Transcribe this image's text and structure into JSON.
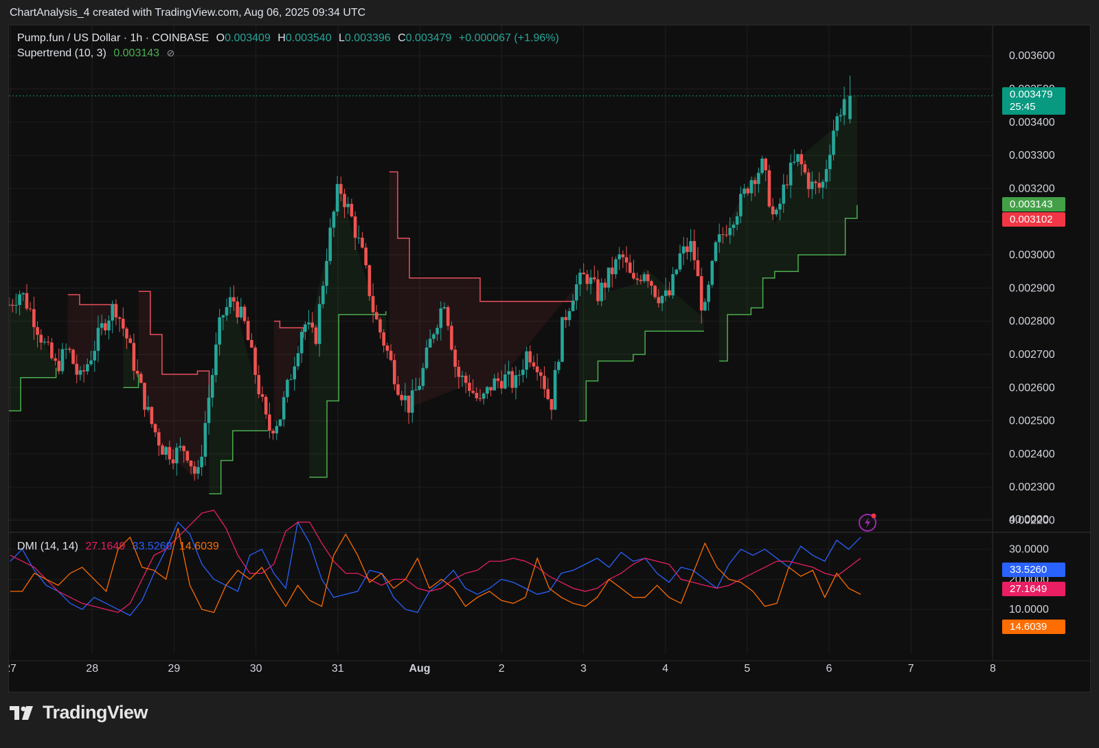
{
  "header": {
    "caption": "ChartAnalysis_4 created with TradingView.com, Aug 06, 2025 09:34 UTC"
  },
  "legend": {
    "symbol": "Pump.fun / US Dollar · 1h · COINBASE",
    "o_label": "O",
    "o_value": "0.003409",
    "h_label": "H",
    "h_value": "0.003540",
    "l_label": "L",
    "l_value": "0.003396",
    "c_label": "C",
    "c_value": "0.003479",
    "change": "+0.000067 (+1.96%)",
    "supertrend_label": "Supertrend (10, 3)",
    "supertrend_value": "0.003143",
    "supertrend_icon": "eye-slash-icon",
    "dmi_label": "DMI (14, 14)",
    "dmi_v1": "27.1649",
    "dmi_v2": "33.5260",
    "dmi_v3": "14.6039"
  },
  "price_tags": {
    "last_price": "0.003479",
    "countdown": "25:45",
    "supertrend_up": "0.003143",
    "supertrend_down": "0.003102"
  },
  "dmi_tags": {
    "plus_di": "33.5260",
    "minus_di": "27.1649",
    "adx": "14.6039"
  },
  "colors": {
    "up": "#26a69a",
    "down": "#ef5350",
    "st_up": "#4caf50",
    "st_down": "#e8515e",
    "plus_di": "#2962ff",
    "minus_di": "#e91e63",
    "adx": "#ff6d00",
    "last_tag": "#089981",
    "st_up_tag": "#43a047",
    "st_down_tag": "#f23645"
  },
  "footer": {
    "brand": "TradingView",
    "logo_icon": "tradingview-logo-icon"
  },
  "chart_data": {
    "type": "candlestick",
    "interval": "1h",
    "price_axis": {
      "labels": [
        "0.003600",
        "0.003500",
        "0.003400",
        "0.003300",
        "0.003200",
        "0.003100",
        "0.003000",
        "0.002900",
        "0.002800",
        "0.002700",
        "0.002600",
        "0.002500",
        "0.002400",
        "0.002300",
        "0.002200"
      ],
      "ylim": [
        0.00217,
        0.00365
      ]
    },
    "dmi_axis": {
      "labels": [
        "40.0000",
        "30.0000",
        "20.0000",
        "10.0000"
      ]
    },
    "x_axis": {
      "labels": [
        "27",
        "28",
        "29",
        "30",
        "31",
        "Aug",
        "2",
        "3",
        "4",
        "5",
        "6",
        "7",
        "8"
      ]
    },
    "price_points": [
      [
        0,
        0.00285
      ],
      [
        1,
        0.00289
      ],
      [
        2,
        0.00282
      ],
      [
        3,
        0.00273
      ],
      [
        4,
        0.00266
      ],
      [
        5,
        0.00272
      ],
      [
        6,
        0.00262
      ],
      [
        7,
        0.0027
      ],
      [
        8,
        0.00279
      ],
      [
        9,
        0.00285
      ],
      [
        10,
        0.00275
      ],
      [
        11,
        0.00262
      ],
      [
        12,
        0.0025
      ],
      [
        13,
        0.00242
      ],
      [
        14,
        0.0024
      ],
      [
        15,
        0.00242
      ],
      [
        16,
        0.00232
      ],
      [
        17,
        0.00258
      ],
      [
        18,
        0.00281
      ],
      [
        19,
        0.00287
      ],
      [
        20,
        0.00279
      ],
      [
        21,
        0.00263
      ],
      [
        22,
        0.00247
      ],
      [
        23,
        0.00251
      ],
      [
        24,
        0.00265
      ],
      [
        25,
        0.0028
      ],
      [
        26,
        0.00274
      ],
      [
        27,
        0.00301
      ],
      [
        28,
        0.00321
      ],
      [
        29,
        0.00312
      ],
      [
        30,
        0.003
      ],
      [
        31,
        0.00282
      ],
      [
        32,
        0.00272
      ],
      [
        33,
        0.00261
      ],
      [
        34,
        0.00254
      ],
      [
        35,
        0.00263
      ],
      [
        36,
        0.00277
      ],
      [
        37,
        0.00287
      ],
      [
        38,
        0.00264
      ],
      [
        39,
        0.00261
      ],
      [
        40,
        0.00255
      ],
      [
        41,
        0.00261
      ],
      [
        42,
        0.00263
      ],
      [
        43,
        0.00261
      ],
      [
        44,
        0.00271
      ],
      [
        45,
        0.00267
      ],
      [
        46,
        0.00254
      ],
      [
        47,
        0.00279
      ],
      [
        48,
        0.0029
      ],
      [
        49,
        0.00294
      ],
      [
        50,
        0.00288
      ],
      [
        51,
        0.00294
      ],
      [
        52,
        0.003
      ],
      [
        53,
        0.00291
      ],
      [
        54,
        0.00296
      ],
      [
        55,
        0.00288
      ],
      [
        56,
        0.00287
      ],
      [
        57,
        0.003
      ],
      [
        58,
        0.00303
      ],
      [
        59,
        0.00281
      ],
      [
        60,
        0.00302
      ],
      [
        61,
        0.00309
      ],
      [
        62,
        0.00315
      ],
      [
        63,
        0.00323
      ],
      [
        64,
        0.00327
      ],
      [
        65,
        0.00309
      ],
      [
        66,
        0.00323
      ],
      [
        67,
        0.00329
      ],
      [
        68,
        0.00321
      ],
      [
        69,
        0.0032
      ],
      [
        70,
        0.00338
      ],
      [
        71,
        0.00348
      ]
    ],
    "supertrend": {
      "up_color": "#4caf50",
      "down_color": "#e8515e",
      "segments": [
        {
          "dir": "up",
          "points": [
            [
              0,
              0.00253
            ],
            [
              1,
              0.00263
            ],
            [
              4,
              0.00266
            ]
          ]
        },
        {
          "dir": "down",
          "points": [
            [
              5,
              0.00288
            ],
            [
              6,
              0.00285
            ],
            [
              9,
              0.00285
            ]
          ]
        },
        {
          "dir": "up",
          "points": [
            [
              9.7,
              0.0026
            ],
            [
              11,
              0.00264
            ]
          ]
        },
        {
          "dir": "down",
          "points": [
            [
              11,
              0.00289
            ],
            [
              12,
              0.00276
            ],
            [
              13,
              0.00264
            ],
            [
              16,
              0.00265
            ],
            [
              17,
              0.00253
            ]
          ]
        },
        {
          "dir": "up",
          "points": [
            [
              17,
              0.00228
            ],
            [
              18,
              0.00238
            ],
            [
              19,
              0.00247
            ],
            [
              22,
              0.00247
            ]
          ]
        },
        {
          "dir": "down",
          "points": [
            [
              22.5,
              0.0028
            ],
            [
              23,
              0.00278
            ],
            [
              25,
              0.00275
            ]
          ]
        },
        {
          "dir": "up",
          "points": [
            [
              25.5,
              0.00233
            ],
            [
              27,
              0.00256
            ],
            [
              28,
              0.00282
            ],
            [
              32,
              0.00283
            ]
          ]
        },
        {
          "dir": "down",
          "points": [
            [
              32.3,
              0.00325
            ],
            [
              33,
              0.00305
            ],
            [
              34,
              0.00293
            ],
            [
              39,
              0.00293
            ],
            [
              40,
              0.00286
            ],
            [
              48,
              0.00285
            ]
          ]
        },
        {
          "dir": "up",
          "points": [
            [
              48.4,
              0.0025
            ],
            [
              49,
              0.00262
            ],
            [
              50,
              0.00268
            ],
            [
              53,
              0.0027
            ],
            [
              54,
              0.00277
            ],
            [
              59,
              0.00277
            ]
          ]
        },
        {
          "dir": "up",
          "points": [
            [
              60.3,
              0.00268
            ],
            [
              61,
              0.00282
            ],
            [
              63,
              0.00284
            ],
            [
              64,
              0.00293
            ],
            [
              65,
              0.00295
            ],
            [
              67,
              0.003
            ],
            [
              70,
              0.003
            ],
            [
              71,
              0.00311
            ],
            [
              72,
              0.00315
            ]
          ]
        }
      ]
    },
    "series": [
      {
        "name": "+DI",
        "color": "#2962ff",
        "values": [
          26,
          30,
          23,
          18,
          16,
          12,
          10,
          14,
          12,
          10,
          8,
          13,
          22,
          30,
          39,
          35,
          25,
          20,
          18,
          16,
          28,
          30,
          22,
          17,
          39,
          32,
          20,
          14,
          15,
          16,
          23,
          22,
          14,
          10,
          9,
          16,
          19,
          23,
          17,
          15,
          17,
          20,
          19,
          17,
          15,
          16,
          22,
          23,
          25,
          27,
          24,
          29,
          26,
          27,
          22,
          19,
          24,
          23,
          20,
          17,
          25,
          30,
          28,
          30,
          27,
          24,
          31,
          28,
          26,
          33,
          30,
          34
        ]
      },
      {
        "name": "-DI",
        "color": "#e91e63",
        "values": [
          28,
          26,
          24,
          20,
          16,
          14,
          12,
          11,
          10,
          9,
          12,
          20,
          28,
          30,
          34,
          38,
          42,
          43,
          37,
          28,
          22,
          22,
          25,
          36,
          39,
          39,
          32,
          26,
          22,
          22,
          20,
          18,
          20,
          20,
          17,
          16,
          17,
          20,
          22,
          23,
          26,
          26,
          27,
          26,
          24,
          21,
          19,
          17,
          16,
          17,
          20,
          22,
          25,
          27,
          26,
          25,
          20,
          19,
          18,
          17,
          18,
          20,
          22,
          24,
          26,
          26,
          25,
          24,
          22,
          21,
          24,
          27
        ]
      },
      {
        "name": "ADX",
        "color": "#ff6d00",
        "values": [
          16,
          16,
          22,
          20,
          18,
          22,
          24,
          20,
          16,
          30,
          34,
          24,
          23,
          20,
          37,
          18,
          10,
          9,
          18,
          23,
          20,
          24,
          17,
          11,
          18,
          13,
          11,
          28,
          35,
          28,
          19,
          22,
          17,
          20,
          27,
          17,
          20,
          17,
          11,
          14,
          16,
          13,
          12,
          14,
          27,
          17,
          14,
          12,
          11,
          14,
          20,
          17,
          14,
          14,
          18,
          14,
          12,
          22,
          32,
          24,
          20,
          19,
          16,
          11,
          12,
          24,
          21,
          23,
          14,
          22,
          17,
          15
        ]
      }
    ]
  }
}
